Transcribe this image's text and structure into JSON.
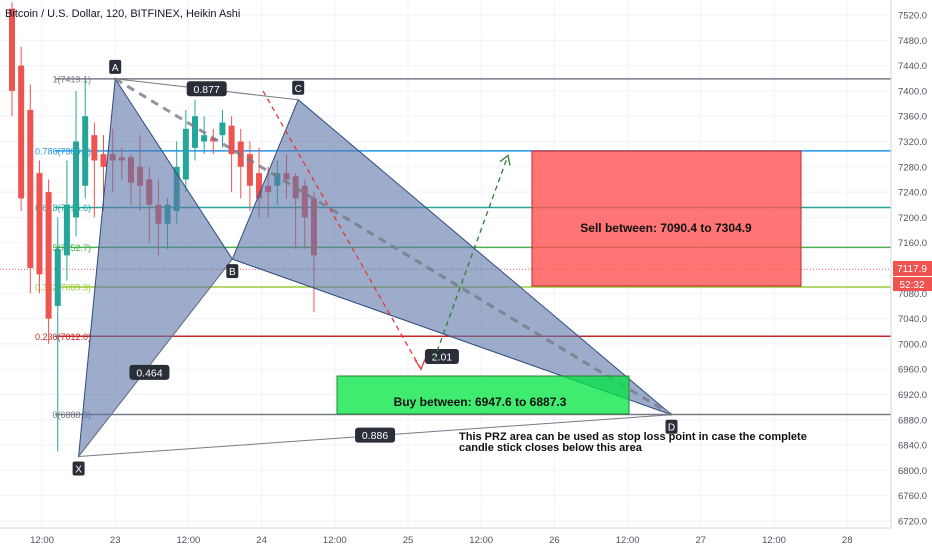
{
  "header": {
    "title": "Bitcoin / U.S. Dollar, 120, BITFINEX, Heikin Ashi"
  },
  "price_axis": {
    "ticks": [
      "7520.0",
      "7480.0",
      "7440.0",
      "7400.0",
      "7360.0",
      "7320.0",
      "7280.0",
      "7240.0",
      "7200.0",
      "7160.0",
      "7120.0",
      "7080.0",
      "7040.0",
      "7000.0",
      "6960.0",
      "6920.0",
      "6880.0",
      "6840.0",
      "6800.0",
      "6760.0",
      "6720.0"
    ],
    "last_price": "7117.9",
    "countdown": "52:32"
  },
  "time_axis": {
    "ticks": [
      "12:00",
      "23",
      "12:00",
      "24",
      "12:00",
      "25",
      "12:00",
      "26",
      "12:00",
      "27",
      "12:00",
      "28"
    ]
  },
  "pattern": {
    "points": [
      {
        "label": "X",
        "time": 0.5,
        "price": 6822
      },
      {
        "label": "A",
        "time": 1.0,
        "price": 7419.1
      },
      {
        "label": "B",
        "time": 2.6,
        "price": 7134
      },
      {
        "label": "C",
        "time": 3.5,
        "price": 7386
      },
      {
        "label": "D",
        "time": 8.6,
        "price": 6888
      }
    ],
    "ratios": [
      "0.877",
      "0.464",
      "0.886",
      "2.01"
    ]
  },
  "fib_levels": [
    {
      "label": "1(7419.1)",
      "price": 7419.1,
      "color": "#787b86"
    },
    {
      "label": "0.786(7305.1)",
      "price": 7305.1,
      "color": "#2196f3"
    },
    {
      "label": "0.618(7215.6)",
      "price": 7215.6,
      "color": "#26a69a"
    },
    {
      "label": "0.5(7152.7)",
      "price": 7152.7,
      "color": "#4caf50"
    },
    {
      "label": "0.382(7089.9)",
      "price": 7089.9,
      "color": "#9ccc3a"
    },
    {
      "label": "0.236(7012.0)",
      "price": 7012.0,
      "color": "#c62828"
    },
    {
      "label": "0(6888.3)",
      "price": 6888.3,
      "color": "#787b86"
    }
  ],
  "zones": {
    "sell": {
      "text": "Sell between: 7090.4 to 7304.9",
      "color": "#ff5252"
    },
    "buy": {
      "text": "Buy between: 6947.6 to 6887.3",
      "color": "#00e640"
    }
  },
  "note": {
    "line1": "This PRZ area can be used as stop loss point in case the complete",
    "line2": "candle stick closes below this area"
  },
  "chart_data": {
    "type": "candlestick",
    "title": "Bitcoin / U.S. Dollar, 120, BITFINEX, Heikin Ashi",
    "ylim": [
      6710,
      7540
    ],
    "x_ticks": [
      "12:00",
      "23",
      "12:00",
      "24",
      "12:00",
      "25",
      "12:00",
      "26",
      "12:00",
      "27",
      "12:00",
      "28"
    ],
    "colors": {
      "up": "#26a69a",
      "down": "#ef5350"
    },
    "candles": [
      {
        "open": 7530,
        "close": 7400,
        "high": 7540,
        "low": 7360
      },
      {
        "open": 7440,
        "close": 7230,
        "high": 7470,
        "low": 7210
      },
      {
        "open": 7370,
        "close": 7120,
        "high": 7410,
        "low": 7080
      },
      {
        "open": 7270,
        "close": 7110,
        "high": 7290,
        "low": 7080
      },
      {
        "open": 7240,
        "close": 7040,
        "high": 7260,
        "low": 7000
      },
      {
        "open": 7060,
        "close": 7150,
        "high": 7200,
        "low": 6830
      },
      {
        "open": 7140,
        "close": 7220,
        "high": 7290,
        "low": 7100
      },
      {
        "open": 7200,
        "close": 7320,
        "high": 7400,
        "low": 7170
      },
      {
        "open": 7250,
        "close": 7360,
        "high": 7419,
        "low": 7230
      },
      {
        "open": 7330,
        "close": 7290,
        "high": 7350,
        "low": 7200
      },
      {
        "open": 7300,
        "close": 7280,
        "high": 7330,
        "low": 7210
      },
      {
        "open": 7300,
        "close": 7290,
        "high": 7340,
        "low": 7240
      },
      {
        "open": 7295,
        "close": 7290,
        "high": 7310,
        "low": 7260
      },
      {
        "open": 7295,
        "close": 7255,
        "high": 7300,
        "low": 7220
      },
      {
        "open": 7280,
        "close": 7250,
        "high": 7330,
        "low": 7210
      },
      {
        "open": 7260,
        "close": 7220,
        "high": 7280,
        "low": 7160
      },
      {
        "open": 7220,
        "close": 7190,
        "high": 7260,
        "low": 7140
      },
      {
        "open": 7190,
        "close": 7220,
        "high": 7230,
        "low": 7150
      },
      {
        "open": 7210,
        "close": 7280,
        "high": 7320,
        "low": 7190
      },
      {
        "open": 7260,
        "close": 7340,
        "high": 7370,
        "low": 7240
      },
      {
        "open": 7310,
        "close": 7360,
        "high": 7386,
        "low": 7290
      },
      {
        "open": 7320,
        "close": 7330,
        "high": 7360,
        "low": 7300
      },
      {
        "open": 7325,
        "close": 7320,
        "high": 7340,
        "low": 7300
      },
      {
        "open": 7330,
        "close": 7350,
        "high": 7370,
        "low": 7310
      },
      {
        "open": 7345,
        "close": 7300,
        "high": 7360,
        "low": 7240
      },
      {
        "open": 7320,
        "close": 7280,
        "high": 7340,
        "low": 7230
      },
      {
        "open": 7300,
        "close": 7250,
        "high": 7320,
        "low": 7210
      },
      {
        "open": 7270,
        "close": 7230,
        "high": 7310,
        "low": 7200
      },
      {
        "open": 7250,
        "close": 7240,
        "high": 7280,
        "low": 7200
      },
      {
        "open": 7250,
        "close": 7270,
        "high": 7290,
        "low": 7220
      },
      {
        "open": 7270,
        "close": 7260,
        "high": 7300,
        "low": 7230
      },
      {
        "open": 7265,
        "close": 7230,
        "high": 7270,
        "low": 7150
      },
      {
        "open": 7250,
        "close": 7200,
        "high": 7260,
        "low": 7150
      },
      {
        "open": 7230,
        "close": 7140,
        "high": 7240,
        "low": 7050
      }
    ]
  }
}
